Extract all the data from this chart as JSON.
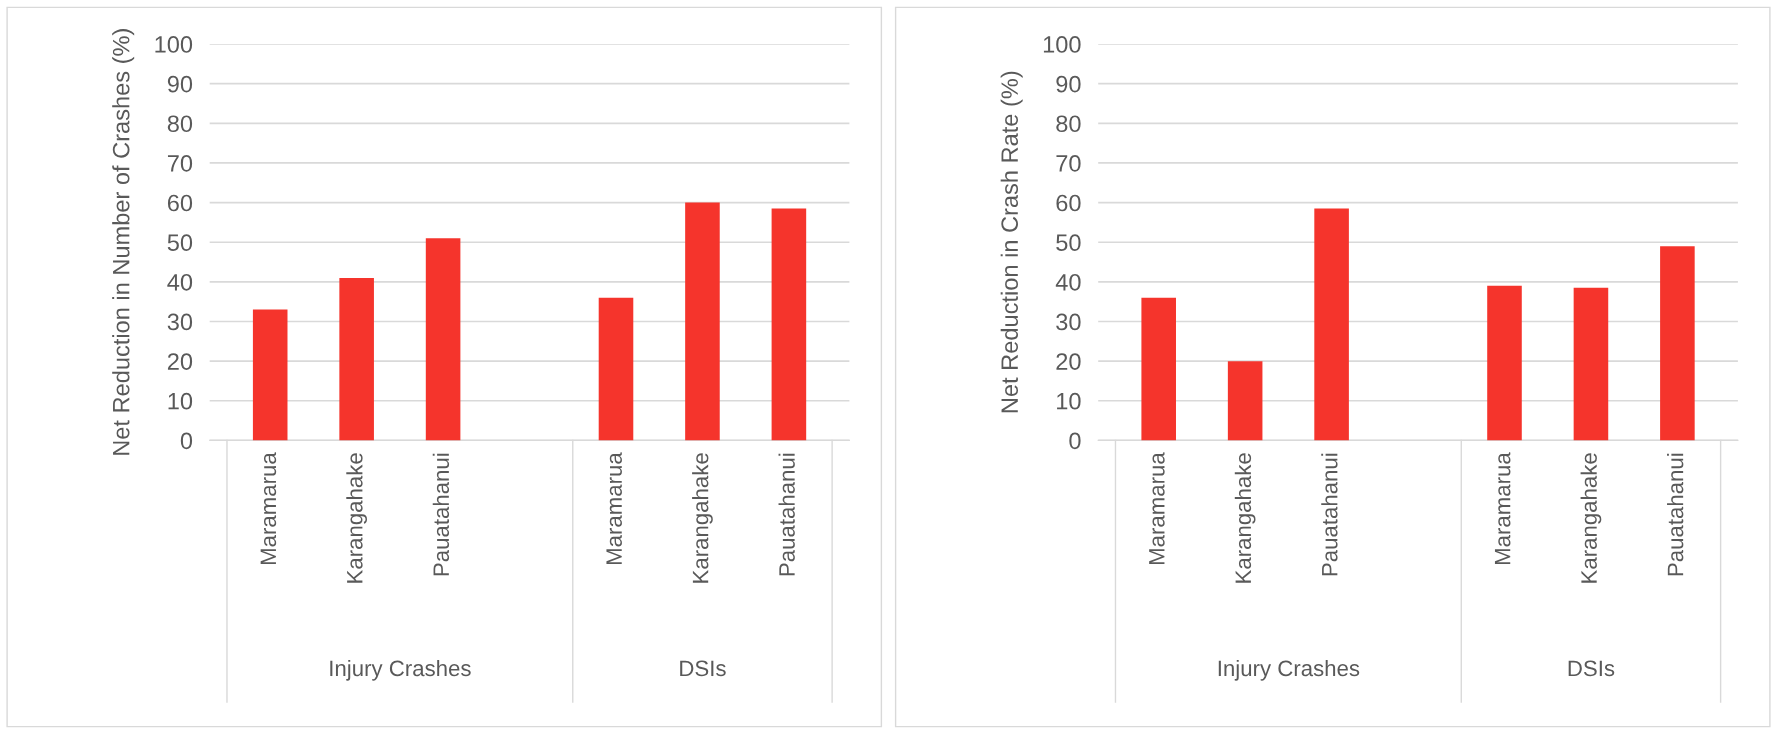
{
  "chart_data": [
    {
      "type": "bar",
      "ylabel": "Net Reduction in Number of Crashes (%)",
      "categories": [
        "Maramarua",
        "Karangahake",
        "Pauatahanui",
        null,
        "Maramarua",
        "Karangahake",
        "Pauatahanui"
      ],
      "series": [
        {
          "color": "#f5342c",
          "values": [
            33,
            41,
            51,
            null,
            36,
            60,
            58.5
          ]
        }
      ],
      "ylim": [
        0,
        100
      ],
      "yticks": [
        0,
        10,
        20,
        30,
        40,
        50,
        60,
        70,
        80,
        90,
        100
      ],
      "grid": "y",
      "annotations": [
        "Injury Crashes",
        "DSIs"
      ]
    },
    {
      "type": "bar",
      "ylabel": "Net Reduction in Crash Rate (%)",
      "categories": [
        "Maramarua",
        "Karangahake",
        "Pauatahanui",
        null,
        "Maramarua",
        "Karangahake",
        "Pauatahanui"
      ],
      "series": [
        {
          "color": "#f5342c",
          "values": [
            36,
            20,
            58.5,
            null,
            39,
            38.5,
            49
          ]
        }
      ],
      "ylim": [
        0,
        100
      ],
      "yticks": [
        0,
        10,
        20,
        30,
        40,
        50,
        60,
        70,
        80,
        90,
        100
      ],
      "grid": "y",
      "annotations": [
        "Injury Crashes",
        "DSIs"
      ]
    }
  ]
}
